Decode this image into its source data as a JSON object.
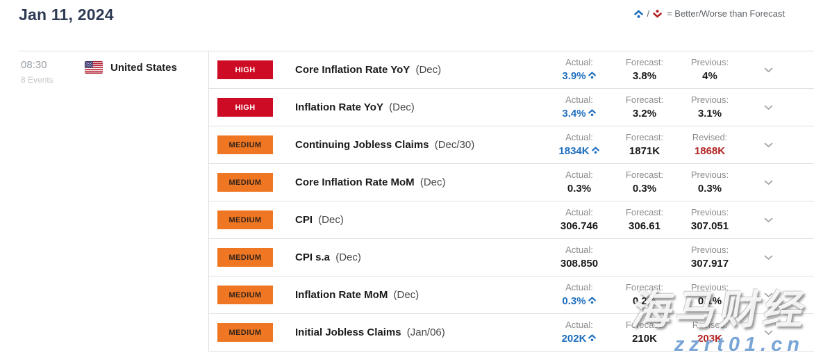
{
  "page_title": "Jan 11, 2024",
  "legend": {
    "separator": "/",
    "text": "= Better/Worse than Forecast",
    "better_icon": "caret-up-dot-blue",
    "worse_icon": "caret-down-dot-red"
  },
  "group": {
    "time": "08:30",
    "events_count": "8 Events",
    "country": "United States",
    "flag_icon": "us-flag"
  },
  "colors": {
    "title_navy": "#2d3a53",
    "better_blue": "#1f6fbf",
    "revised_red": "#b22222",
    "high_badge_red": "#ce0b24",
    "medium_badge_orange": "#ef7622"
  },
  "rows": [
    {
      "importance": "HIGH",
      "title": "Core Inflation Rate YoY",
      "period": "(Dec)",
      "cols": [
        {
          "label": "Actual:",
          "value": "3.9%",
          "style": "better"
        },
        {
          "label": "Forecast:",
          "value": "3.8%",
          "style": "normal"
        },
        {
          "label": "Previous:",
          "value": "4%",
          "style": "normal"
        }
      ]
    },
    {
      "importance": "HIGH",
      "title": "Inflation Rate YoY",
      "period": "(Dec)",
      "cols": [
        {
          "label": "Actual:",
          "value": "3.4%",
          "style": "better"
        },
        {
          "label": "Forecast:",
          "value": "3.2%",
          "style": "normal"
        },
        {
          "label": "Previous:",
          "value": "3.1%",
          "style": "normal"
        }
      ]
    },
    {
      "importance": "MEDIUM",
      "title": "Continuing Jobless Claims",
      "period": "(Dec/30)",
      "cols": [
        {
          "label": "Actual:",
          "value": "1834K",
          "style": "better"
        },
        {
          "label": "Forecast:",
          "value": "1871K",
          "style": "normal"
        },
        {
          "label": "Revised:",
          "value": "1868K",
          "style": "revised"
        }
      ]
    },
    {
      "importance": "MEDIUM",
      "title": "Core Inflation Rate MoM",
      "period": "(Dec)",
      "cols": [
        {
          "label": "Actual:",
          "value": "0.3%",
          "style": "normal"
        },
        {
          "label": "Forecast:",
          "value": "0.3%",
          "style": "normal"
        },
        {
          "label": "Previous:",
          "value": "0.3%",
          "style": "normal"
        }
      ]
    },
    {
      "importance": "MEDIUM",
      "title": "CPI",
      "period": "(Dec)",
      "cols": [
        {
          "label": "Actual:",
          "value": "306.746",
          "style": "normal"
        },
        {
          "label": "Forecast:",
          "value": "306.61",
          "style": "normal"
        },
        {
          "label": "Previous:",
          "value": "307.051",
          "style": "normal"
        }
      ]
    },
    {
      "importance": "MEDIUM",
      "title": "CPI s.a",
      "period": "(Dec)",
      "cols": [
        {
          "label": "Actual:",
          "value": "308.850",
          "style": "normal"
        },
        null,
        {
          "label": "Previous:",
          "value": "307.917",
          "style": "normal"
        }
      ]
    },
    {
      "importance": "MEDIUM",
      "title": "Inflation Rate MoM",
      "period": "(Dec)",
      "cols": [
        {
          "label": "Actual:",
          "value": "0.3%",
          "style": "better"
        },
        {
          "label": "Forecast:",
          "value": "0.2%",
          "style": "normal"
        },
        {
          "label": "Previous:",
          "value": "0.1%",
          "style": "normal"
        }
      ]
    },
    {
      "importance": "MEDIUM",
      "title": "Initial Jobless Claims",
      "period": "(Jan/06)",
      "cols": [
        {
          "label": "Actual:",
          "value": "202K",
          "style": "better"
        },
        {
          "label": "Forecast:",
          "value": "210K",
          "style": "normal"
        },
        {
          "label": "Revised:",
          "value": "203K",
          "style": "revised"
        }
      ]
    }
  ],
  "watermark": {
    "line1": "海马财经",
    "line2": "zzrt01.cn"
  }
}
